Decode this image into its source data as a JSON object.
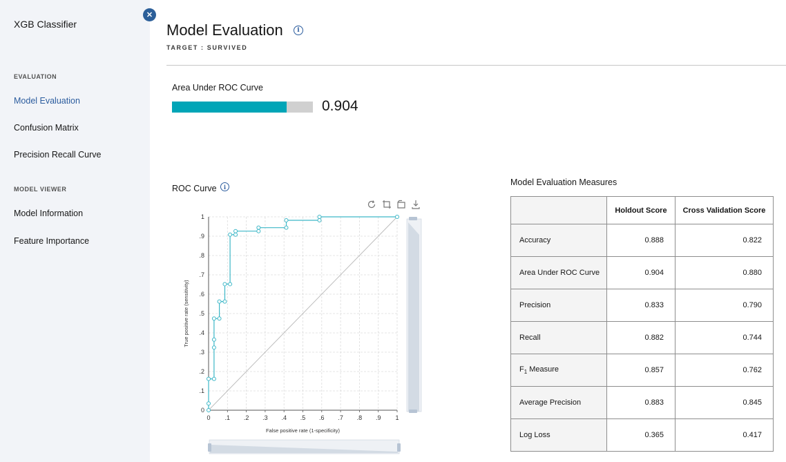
{
  "sidebar": {
    "app_title": "XGB Classifier",
    "sections": [
      {
        "label": "EVALUATION",
        "items": [
          {
            "label": "Model Evaluation",
            "active": true
          },
          {
            "label": "Confusion Matrix",
            "active": false
          },
          {
            "label": "Precision Recall Curve",
            "active": false
          }
        ]
      },
      {
        "label": "MODEL VIEWER",
        "items": [
          {
            "label": "Model Information",
            "active": false
          },
          {
            "label": "Feature Importance",
            "active": false
          }
        ]
      }
    ]
  },
  "header": {
    "title": "Model Evaluation",
    "target": "TARGET : SURVIVED",
    "close_icon": "close-icon",
    "info_icon": "info-icon"
  },
  "auc": {
    "label": "Area Under ROC Curve",
    "value_text": "0.904",
    "value": 0.904,
    "fill_color": "#00a5b7"
  },
  "roc": {
    "title": "ROC Curve",
    "toolbar_icons": [
      "refresh-icon",
      "crop-icon",
      "reset-zoom-icon",
      "download-icon"
    ]
  },
  "chart_data": {
    "type": "line",
    "title": "",
    "xlabel": "False positive rate (1-specificity)",
    "ylabel": "True positive rate (sensitivity)",
    "xlim": [
      0,
      1
    ],
    "ylim": [
      0,
      1
    ],
    "x_ticks": [
      "0",
      ".1",
      ".2",
      ".3",
      ".4",
      ".5",
      ".6",
      ".7",
      ".8",
      ".9",
      "1"
    ],
    "y_ticks": [
      "0",
      ".1",
      ".2",
      ".3",
      ".4",
      ".5",
      ".6",
      ".7",
      ".8",
      ".9",
      "1"
    ],
    "grid": true,
    "line_color": "#3cb7c7",
    "diagonal_color": "#bdbdbd",
    "series": [
      {
        "x": [
          0,
          0,
          0,
          0.029,
          0.029,
          0.029,
          0.029,
          0.057,
          0.057,
          0.086,
          0.086,
          0.114,
          0.114,
          0.143,
          0.143,
          0.265,
          0.265,
          0.412,
          0.412,
          0.588,
          0.588,
          1
        ],
        "y": [
          0,
          0.035,
          0.162,
          0.162,
          0.324,
          0.365,
          0.474,
          0.474,
          0.562,
          0.562,
          0.652,
          0.652,
          0.908,
          0.908,
          0.926,
          0.926,
          0.944,
          0.944,
          0.982,
          0.982,
          1,
          1
        ]
      }
    ]
  },
  "measures": {
    "title": "Model Evaluation Measures",
    "columns": [
      "",
      "Holdout Score",
      "Cross Validation Score"
    ],
    "rows": [
      {
        "label": "Accuracy",
        "holdout": "0.888",
        "cv": "0.822"
      },
      {
        "label": "Area Under ROC Curve",
        "holdout": "0.904",
        "cv": "0.880"
      },
      {
        "label": "Precision",
        "holdout": "0.833",
        "cv": "0.790"
      },
      {
        "label": "Recall",
        "holdout": "0.882",
        "cv": "0.744"
      },
      {
        "label": "F",
        "label_sub": "1",
        "label_suffix": " Measure",
        "holdout": "0.857",
        "cv": "0.762"
      },
      {
        "label": "Average Precision",
        "holdout": "0.883",
        "cv": "0.845"
      },
      {
        "label": "Log Loss",
        "holdout": "0.365",
        "cv": "0.417"
      }
    ]
  }
}
